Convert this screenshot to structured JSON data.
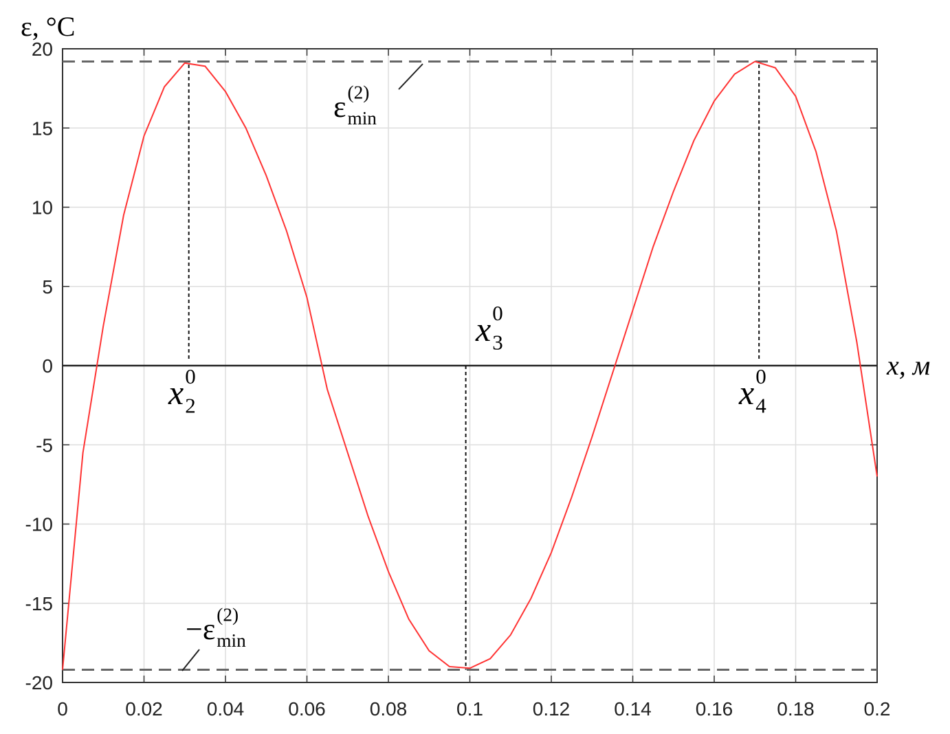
{
  "chart_data": {
    "type": "line",
    "x_label": "x, м",
    "y_label": "ε, °C",
    "x": [
      0,
      0.005,
      0.01,
      0.015,
      0.02,
      0.025,
      0.03,
      0.035,
      0.04,
      0.045,
      0.05,
      0.055,
      0.06,
      0.065,
      0.07,
      0.075,
      0.08,
      0.085,
      0.09,
      0.095,
      0.1,
      0.105,
      0.11,
      0.115,
      0.12,
      0.125,
      0.13,
      0.135,
      0.14,
      0.145,
      0.15,
      0.155,
      0.16,
      0.165,
      0.17,
      0.175,
      0.18,
      0.185,
      0.19,
      0.195,
      0.2
    ],
    "series": [
      {
        "color": "#ff3333",
        "values": [
          -19.2,
          -5.5,
          2.5,
          9.5,
          14.5,
          17.6,
          19.1,
          18.9,
          17.3,
          15.0,
          12.0,
          8.5,
          4.3,
          -1.5,
          -5.5,
          -9.5,
          -13,
          -16,
          -18,
          -19,
          -19.1,
          -18.5,
          -17,
          -14.7,
          -11.8,
          -8.3,
          -4.5,
          -0.5,
          3.5,
          7.5,
          11,
          14.2,
          16.7,
          18.4,
          19.2,
          18.8,
          17,
          13.5,
          8.5,
          1.5,
          -7
        ]
      }
    ],
    "xlim": [
      0,
      0.2
    ],
    "ylim": [
      -20,
      20
    ],
    "xticks": [
      0,
      0.02,
      0.04,
      0.06,
      0.08,
      0.1,
      0.12,
      0.14,
      0.16,
      0.18,
      0.2
    ],
    "yticks": [
      -20,
      -15,
      -10,
      -5,
      0,
      5,
      10,
      15,
      20
    ],
    "grid": true,
    "hlines": [
      19.2,
      -19.2
    ],
    "vlines": [
      0.031,
      0.099,
      0.171
    ],
    "annotations": [
      {
        "base": "ε",
        "sup": "(2)",
        "sub": "min"
      },
      {
        "base": "−ε",
        "sup": "(2)",
        "sub": "min"
      },
      {
        "base": "x",
        "sup": "0",
        "sub": "2"
      },
      {
        "base": "x",
        "sup": "0",
        "sub": "3"
      },
      {
        "base": "x",
        "sup": "0",
        "sub": "4"
      }
    ]
  }
}
